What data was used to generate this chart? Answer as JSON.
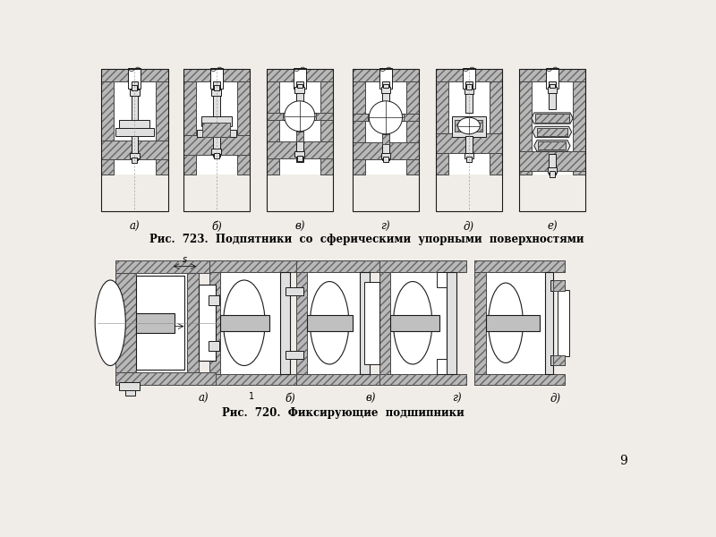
{
  "page_color": "#f0ede8",
  "fig_width": 8.0,
  "fig_height": 6.0,
  "caption1": "Рис.  723.  Подпятники  со  сферическими  упорными  поверхностями",
  "caption2": "Рис.  720.  Фиксирующие  подшипники",
  "labels_top": [
    "а)",
    "б)",
    "в)",
    "г)",
    "д)",
    "е)"
  ],
  "labels_bottom": [
    "а)",
    "б)",
    "в)",
    "г)",
    "д)"
  ],
  "page_number": "9",
  "caption1_fontsize": 8.5,
  "caption2_fontsize": 8.5,
  "label_fontsize": 8.5,
  "line_color": "#1a1a1a",
  "hatch_bg": "#b8b8b8",
  "fill_light": "#e0e0e0",
  "fill_white": "#ffffff",
  "fill_medium": "#c0c0c0"
}
